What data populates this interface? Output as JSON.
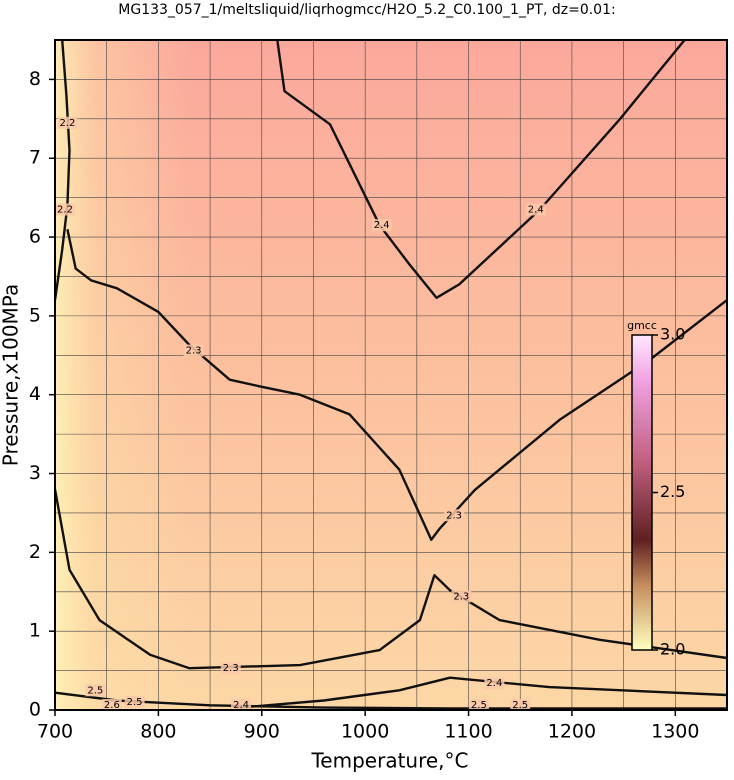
{
  "chart_data": {
    "type": "contour",
    "title": "MG133_057_1/meltsliquid/liqrhogmcc/H2O_5.2_C0.100_1_PT, dz=0.01:",
    "x_label": "Temperature,°C",
    "y_label": "Pressure,x100MPa",
    "xlim": [
      700,
      1350
    ],
    "ylim": [
      0,
      8.5
    ],
    "xticks": [
      700,
      800,
      900,
      1000,
      1100,
      1200,
      1300
    ],
    "yticks": [
      0,
      1,
      2,
      3,
      4,
      5,
      6,
      7,
      8
    ],
    "xminorticks": [
      750,
      850,
      950,
      1050,
      1150,
      1250
    ],
    "yminorticks": [
      0.5,
      1.5,
      2.5,
      3.5,
      4.5,
      5.5,
      6.5,
      7.5
    ],
    "grid": true,
    "contours": [
      {
        "level": 2.2,
        "x": [
          707,
          711,
          714,
          712,
          707,
          700
        ],
        "y": [
          8.5,
          7.8,
          7.1,
          6.4,
          5.84,
          5.2
        ]
      },
      {
        "level": 2.4,
        "x": [
          915,
          922,
          966,
          1014,
          1043,
          1069,
          1091,
          1169,
          1246,
          1309
        ],
        "y": [
          8.5,
          7.85,
          7.43,
          6.15,
          5.65,
          5.23,
          5.4,
          6.35,
          7.49,
          8.5
        ]
      },
      {
        "level": 2.3,
        "x": [
          712,
          720,
          735,
          760,
          800,
          830,
          869,
          900,
          937,
          985,
          1033,
          1064,
          1072,
          1106,
          1188,
          1275,
          1350
        ],
        "y": [
          6.1,
          5.6,
          5.45,
          5.35,
          5.05,
          4.63,
          4.19,
          4.1,
          4.0,
          3.75,
          3.05,
          2.16,
          2.3,
          2.79,
          3.68,
          4.44,
          5.2
        ]
      },
      {
        "level": 2.3,
        "x": [
          700,
          714,
          743,
          792,
          830,
          937,
          1014,
          1053,
          1067,
          1082,
          1130,
          1227,
          1350
        ],
        "y": [
          2.8,
          1.78,
          1.14,
          0.7,
          0.53,
          0.57,
          0.76,
          1.14,
          1.71,
          1.52,
          1.14,
          0.89,
          0.66
        ]
      },
      {
        "level": 2.4,
        "x": [
          879,
          960,
          1033,
          1082,
          1178,
          1350
        ],
        "y": [
          0.03,
          0.12,
          0.25,
          0.41,
          0.29,
          0.19
        ]
      },
      {
        "level": 2.5,
        "x": [
          700,
          760,
          850,
          960,
          1080,
          1200,
          1350
        ],
        "y": [
          0.22,
          0.12,
          0.06,
          0.03,
          0.02,
          0.02,
          0.02
        ]
      }
    ],
    "contour_labels": [
      {
        "level": 2.2,
        "x": 712,
        "y": 7.45
      },
      {
        "level": 2.2,
        "x": 709,
        "y": 6.35
      },
      {
        "level": 2.4,
        "x": 1016,
        "y": 6.15
      },
      {
        "level": 2.4,
        "x": 1165,
        "y": 6.35
      },
      {
        "level": 2.3,
        "x": 834,
        "y": 4.56
      },
      {
        "level": 2.3,
        "x": 1086,
        "y": 2.47
      },
      {
        "level": 2.3,
        "x": 1093,
        "y": 1.44
      },
      {
        "level": 2.3,
        "x": 870,
        "y": 0.53
      },
      {
        "level": 2.4,
        "x": 1125,
        "y": 0.34
      },
      {
        "level": 2.4,
        "x": 880,
        "y": 0.0
      },
      {
        "level": 2.5,
        "x": 739,
        "y": 0.25
      },
      {
        "level": 2.5,
        "x": 777,
        "y": 0.1
      },
      {
        "level": 2.6,
        "x": 755,
        "y": 0.06
      },
      {
        "level": 2.5,
        "x": 1110,
        "y": 0.02
      },
      {
        "level": 2.5,
        "x": 1150,
        "y": 0.0
      }
    ],
    "colorbar": {
      "label": "gmcc",
      "range": [
        2.0,
        3.0
      ],
      "ticks": [
        {
          "value": 2.0,
          "label": "2.0"
        },
        2.5,
        {
          "value": 3.0,
          "label": "3.0"
        }
      ]
    }
  }
}
